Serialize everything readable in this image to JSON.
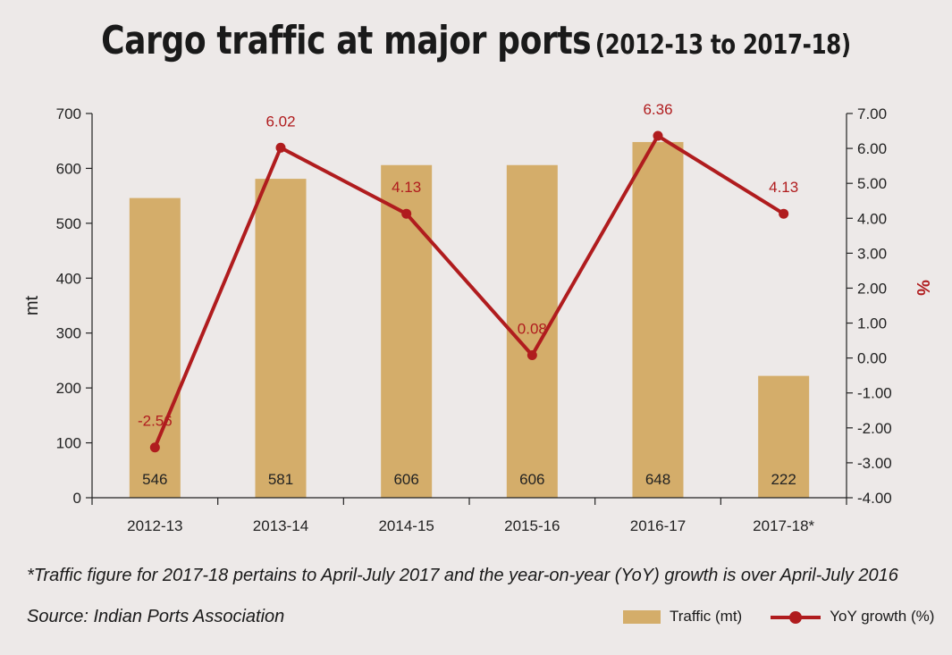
{
  "title": {
    "main": "Cargo traffic at major ports",
    "sub": "(2012-13 to 2017-18)"
  },
  "footnote": "*Traffic figure for 2017-18 pertains to April-July 2017 and the year-on-year (YoY) growth is over April-July 2016",
  "source": "Source: Indian Ports Association",
  "legend": {
    "bar_label": "Traffic (mt)",
    "line_label": "YoY growth (%)"
  },
  "colors": {
    "bar": "#d4ad6a",
    "line": "#b01c1e",
    "axis": "#222222",
    "background": "#ede9e8"
  },
  "chart_data": {
    "type": "bar",
    "categories": [
      "2012-13",
      "2013-14",
      "2014-15",
      "2015-16",
      "2016-17",
      "2017-18*"
    ],
    "series": [
      {
        "name": "Traffic (mt)",
        "type": "bar",
        "axis": "left",
        "values": [
          546,
          581,
          606,
          606,
          648,
          222
        ],
        "value_labels": [
          "546",
          "581",
          "606",
          "606",
          "648",
          "222"
        ]
      },
      {
        "name": "YoY growth (%)",
        "type": "line",
        "axis": "right",
        "values": [
          -2.56,
          6.02,
          4.13,
          0.08,
          6.36,
          4.13
        ],
        "value_labels": [
          "-2.56",
          "6.02",
          "4.13",
          "0.08",
          "6.36",
          "4.13"
        ]
      }
    ],
    "ylabel": "mt",
    "ylim": [
      0,
      700
    ],
    "yticks": [
      "0",
      "100",
      "200",
      "300",
      "400",
      "500",
      "600",
      "700"
    ],
    "y2label": "%",
    "y2lim": [
      -4,
      7
    ],
    "y2ticks": [
      "-4.00",
      "-3.00",
      "-2.00",
      "-1.00",
      "0.00",
      "1.00",
      "2.00",
      "3.00",
      "4.00",
      "5.00",
      "6.00",
      "7.00"
    ],
    "grid": false,
    "legend_position": "bottom-right"
  }
}
